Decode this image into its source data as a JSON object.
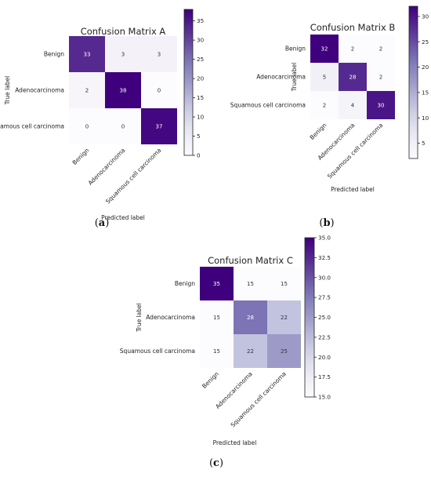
{
  "chart_data": [
    {
      "type": "heatmap",
      "title": "Confusion Matrix A",
      "panel_label": "(a)",
      "panel_letter": "a",
      "xlabel": "Predicted label",
      "ylabel": "True label",
      "x_categories": [
        "Benign",
        "Adenocarcinoma",
        "Squamous cell carcinoma"
      ],
      "y_categories": [
        "Benign",
        "Adenocarcinoma",
        "Squamous cell carcinoma"
      ],
      "values": [
        [
          33,
          3,
          3
        ],
        [
          2,
          38,
          0
        ],
        [
          0,
          0,
          37
        ]
      ],
      "colorbar": {
        "min": 0,
        "max": 38,
        "ticks": [
          0,
          5,
          10,
          15,
          20,
          25,
          30,
          35
        ]
      },
      "colormap": "Purples"
    },
    {
      "type": "heatmap",
      "title": "Confusion Matrix B",
      "panel_label": "(b)",
      "panel_letter": "b",
      "xlabel": "Predicted label",
      "ylabel": "True label",
      "x_categories": [
        "Benign",
        "Adenocarcinoma",
        "Squamous cell carcinoma"
      ],
      "y_categories": [
        "Benign",
        "Adenocarcinoma",
        "Squamous cell carcinoma"
      ],
      "values": [
        [
          32,
          2,
          2
        ],
        [
          5,
          28,
          2
        ],
        [
          2,
          4,
          30
        ]
      ],
      "colorbar": {
        "min": 2,
        "max": 32,
        "ticks": [
          5,
          10,
          15,
          20,
          25,
          30
        ]
      },
      "colormap": "Purples"
    },
    {
      "type": "heatmap",
      "title": "Confusion Matrix C",
      "panel_label": "(c)",
      "panel_letter": "c",
      "xlabel": "Predicted label",
      "ylabel": "True label",
      "x_categories": [
        "Benign",
        "Adenocarcinoma",
        "Squamous cell carcinoma"
      ],
      "y_categories": [
        "Benign",
        "Adenocarcinoma",
        "Squamous cell carcinoma"
      ],
      "values": [
        [
          35,
          15,
          15
        ],
        [
          15,
          28,
          22
        ],
        [
          15,
          22,
          25
        ]
      ],
      "colorbar": {
        "min": 15,
        "max": 35,
        "ticks": [
          "15.0",
          "17.5",
          "20.0",
          "22.5",
          "25.0",
          "27.5",
          "30.0",
          "32.5",
          "35.0"
        ]
      },
      "colormap": "Purples"
    }
  ]
}
